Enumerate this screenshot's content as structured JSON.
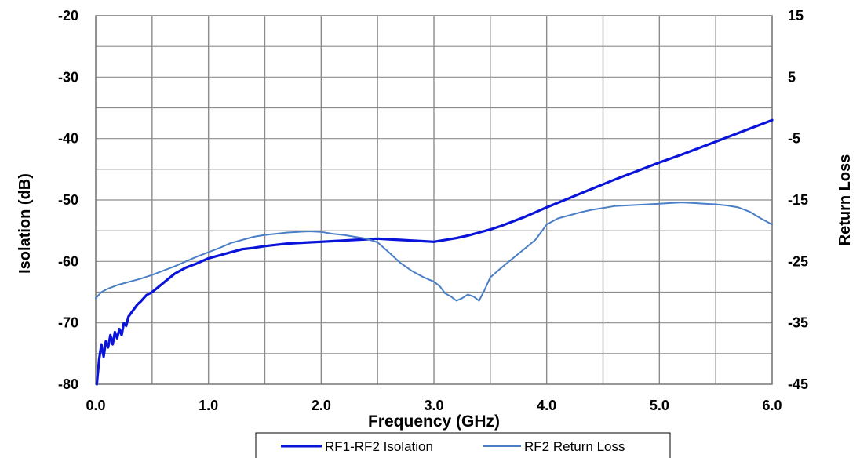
{
  "chart_data": {
    "type": "line",
    "title": "",
    "xlabel": "Frequency (GHz)",
    "ylabel": "Isolation (dB)",
    "y2label": "Return Loss",
    "xlim": [
      0,
      6
    ],
    "ylim": [
      -80,
      -20
    ],
    "y2lim": [
      -45,
      15
    ],
    "x_ticks": [
      0,
      0.5,
      1,
      1.5,
      2,
      2.5,
      3,
      3.5,
      4,
      4.5,
      5,
      5.5,
      6
    ],
    "x_tick_labels": [
      "0.0",
      "1.0",
      "2.0",
      "3.0",
      "4.0",
      "5.0",
      "6.0"
    ],
    "x_tick_label_values": [
      0,
      1,
      2,
      3,
      4,
      5,
      6
    ],
    "y_ticks": [
      -80,
      -75,
      -70,
      -65,
      -60,
      -55,
      -50,
      -45,
      -40,
      -35,
      -30,
      -25,
      -20
    ],
    "y_tick_labels": [
      "-80",
      "-70",
      "-60",
      "-50",
      "-40",
      "-30",
      "-20"
    ],
    "y_tick_label_values": [
      -80,
      -70,
      -60,
      -50,
      -40,
      -30,
      -20
    ],
    "y2_tick_labels": [
      "-45",
      "-35",
      "-25",
      "-15",
      "-5",
      "5",
      "15"
    ],
    "y2_tick_label_values": [
      -45,
      -35,
      -25,
      -15,
      -5,
      5,
      15
    ],
    "grid": true,
    "legend_position": "bottom-center",
    "series": [
      {
        "name": "RF1-RF2 Isolation",
        "axis": "left",
        "color": "#0a14d8",
        "x": [
          0.01,
          0.03,
          0.05,
          0.07,
          0.09,
          0.11,
          0.13,
          0.15,
          0.17,
          0.19,
          0.21,
          0.23,
          0.25,
          0.27,
          0.29,
          0.31,
          0.33,
          0.35,
          0.37,
          0.4,
          0.45,
          0.5,
          0.6,
          0.7,
          0.8,
          0.9,
          1.0,
          1.1,
          1.2,
          1.3,
          1.4,
          1.5,
          1.6,
          1.7,
          1.8,
          1.9,
          2.0,
          2.1,
          2.2,
          2.3,
          2.4,
          2.5,
          2.6,
          2.7,
          2.8,
          2.9,
          3.0,
          3.1,
          3.2,
          3.3,
          3.4,
          3.5,
          3.6,
          3.7,
          3.8,
          3.9,
          4.0,
          4.2,
          4.4,
          4.6,
          4.8,
          5.0,
          5.2,
          5.4,
          5.6,
          5.8,
          6.0
        ],
        "y": [
          -80.0,
          -76.0,
          -73.5,
          -75.5,
          -73.0,
          -74.0,
          -72.0,
          -73.5,
          -71.5,
          -72.5,
          -71.0,
          -72.0,
          -70.0,
          -70.5,
          -69.0,
          -68.5,
          -68.0,
          -67.5,
          -67.0,
          -66.5,
          -65.5,
          -65.0,
          -63.5,
          -62.0,
          -61.0,
          -60.3,
          -59.5,
          -59.0,
          -58.5,
          -58.0,
          -57.8,
          -57.5,
          -57.3,
          -57.1,
          -57.0,
          -56.9,
          -56.8,
          -56.7,
          -56.6,
          -56.5,
          -56.4,
          -56.3,
          -56.4,
          -56.5,
          -56.6,
          -56.7,
          -56.8,
          -56.5,
          -56.2,
          -55.8,
          -55.3,
          -54.8,
          -54.2,
          -53.5,
          -52.8,
          -52.0,
          -51.2,
          -49.7,
          -48.2,
          -46.7,
          -45.3,
          -43.9,
          -42.6,
          -41.2,
          -39.8,
          -38.4,
          -37.0
        ]
      },
      {
        "name": "RF2 Return Loss",
        "axis": "right",
        "color": "#4a7fc6",
        "x": [
          0.0,
          0.05,
          0.1,
          0.2,
          0.3,
          0.4,
          0.5,
          0.6,
          0.7,
          0.8,
          0.9,
          1.0,
          1.1,
          1.2,
          1.3,
          1.4,
          1.5,
          1.6,
          1.7,
          1.8,
          1.9,
          2.0,
          2.1,
          2.2,
          2.3,
          2.4,
          2.5,
          2.6,
          2.7,
          2.8,
          2.9,
          3.0,
          3.05,
          3.1,
          3.15,
          3.2,
          3.25,
          3.3,
          3.35,
          3.4,
          3.45,
          3.5,
          3.6,
          3.7,
          3.8,
          3.9,
          4.0,
          4.1,
          4.2,
          4.3,
          4.4,
          4.5,
          4.6,
          4.7,
          4.8,
          4.9,
          5.0,
          5.1,
          5.2,
          5.3,
          5.4,
          5.5,
          5.6,
          5.7,
          5.8,
          5.9,
          6.0
        ],
        "y": [
          -31.0,
          -30.0,
          -29.5,
          -28.8,
          -28.3,
          -27.8,
          -27.2,
          -26.5,
          -25.8,
          -25.0,
          -24.2,
          -23.5,
          -22.8,
          -22.0,
          -21.5,
          -21.0,
          -20.7,
          -20.5,
          -20.3,
          -20.2,
          -20.1,
          -20.2,
          -20.5,
          -20.7,
          -21.0,
          -21.3,
          -21.9,
          -23.5,
          -25.2,
          -26.5,
          -27.5,
          -28.3,
          -29.0,
          -30.2,
          -30.7,
          -31.4,
          -31.0,
          -30.4,
          -30.7,
          -31.4,
          -29.6,
          -27.6,
          -26.0,
          -24.5,
          -23.0,
          -21.5,
          -19.0,
          -18.0,
          -17.5,
          -17.0,
          -16.6,
          -16.3,
          -16.0,
          -15.9,
          -15.8,
          -15.7,
          -15.6,
          -15.5,
          -15.4,
          -15.5,
          -15.6,
          -15.7,
          -15.9,
          -16.2,
          -16.9,
          -18.0,
          -19.0
        ]
      }
    ]
  }
}
